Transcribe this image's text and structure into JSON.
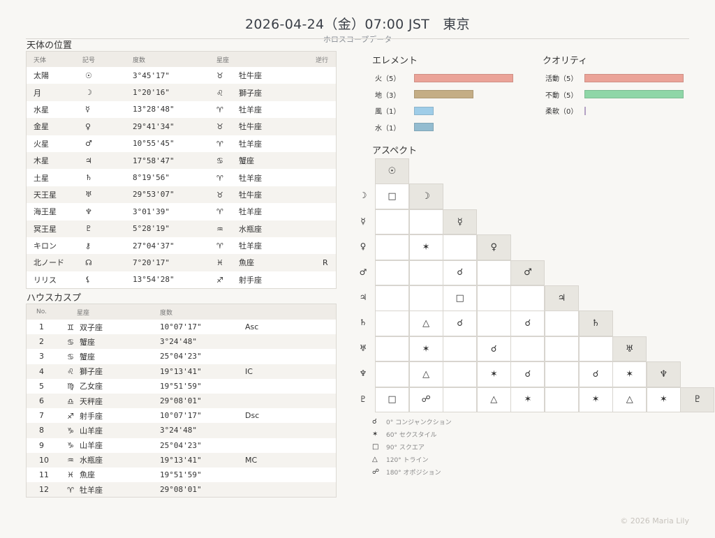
{
  "header": {
    "title": "2026-04-24（金）07:00 JST　東京",
    "subtitle": "ホロスコープデータ"
  },
  "planets": {
    "title": "天体の位置",
    "columns": [
      "天体",
      "記号",
      "度数",
      "星座",
      "逆行"
    ],
    "rows": [
      {
        "name": "太陽",
        "symbol": "☉",
        "degree": "3°45'17\"",
        "sign_symbol": "♉",
        "sign": "牡牛座",
        "retro": ""
      },
      {
        "name": "月",
        "symbol": "☽",
        "degree": "1°20'16\"",
        "sign_symbol": "♌",
        "sign": "獅子座",
        "retro": ""
      },
      {
        "name": "水星",
        "symbol": "☿",
        "degree": "13°28'48\"",
        "sign_symbol": "♈",
        "sign": "牡羊座",
        "retro": ""
      },
      {
        "name": "金星",
        "symbol": "♀",
        "degree": "29°41'34\"",
        "sign_symbol": "♉",
        "sign": "牡牛座",
        "retro": ""
      },
      {
        "name": "火星",
        "symbol": "♂",
        "degree": "10°55'45\"",
        "sign_symbol": "♈",
        "sign": "牡羊座",
        "retro": ""
      },
      {
        "name": "木星",
        "symbol": "♃",
        "degree": "17°58'47\"",
        "sign_symbol": "♋",
        "sign": "蟹座",
        "retro": ""
      },
      {
        "name": "土星",
        "symbol": "♄",
        "degree": "8°19'56\"",
        "sign_symbol": "♈",
        "sign": "牡羊座",
        "retro": ""
      },
      {
        "name": "天王星",
        "symbol": "♅",
        "degree": "29°53'07\"",
        "sign_symbol": "♉",
        "sign": "牡牛座",
        "retro": ""
      },
      {
        "name": "海王星",
        "symbol": "♆",
        "degree": "3°01'39\"",
        "sign_symbol": "♈",
        "sign": "牡羊座",
        "retro": ""
      },
      {
        "name": "冥王星",
        "symbol": "♇",
        "degree": "5°28'19\"",
        "sign_symbol": "♒",
        "sign": "水瓶座",
        "retro": ""
      },
      {
        "name": "キロン",
        "symbol": "⚷",
        "degree": "27°04'37\"",
        "sign_symbol": "♈",
        "sign": "牡羊座",
        "retro": ""
      },
      {
        "name": "北ノード",
        "symbol": "☊",
        "degree": "7°20'17\"",
        "sign_symbol": "♓",
        "sign": "魚座",
        "retro": "R"
      },
      {
        "name": "リリス",
        "symbol": "⚸",
        "degree": "13°54'28\"",
        "sign_symbol": "♐",
        "sign": "射手座",
        "retro": ""
      }
    ]
  },
  "houses": {
    "title": "ハウスカスプ",
    "columns": [
      "No.",
      "星座",
      "度数",
      ""
    ],
    "rows": [
      {
        "no": "1",
        "sign_symbol": "♊",
        "sign": "双子座",
        "degree": "10°07'17\"",
        "angle": "Asc"
      },
      {
        "no": "2",
        "sign_symbol": "♋",
        "sign": "蟹座",
        "degree": "3°24'48\"",
        "angle": ""
      },
      {
        "no": "3",
        "sign_symbol": "♋",
        "sign": "蟹座",
        "degree": "25°04'23\"",
        "angle": ""
      },
      {
        "no": "4",
        "sign_symbol": "♌",
        "sign": "獅子座",
        "degree": "19°13'41\"",
        "angle": "IC"
      },
      {
        "no": "5",
        "sign_symbol": "♍",
        "sign": "乙女座",
        "degree": "19°51'59\"",
        "angle": ""
      },
      {
        "no": "6",
        "sign_symbol": "♎",
        "sign": "天秤座",
        "degree": "29°08'01\"",
        "angle": ""
      },
      {
        "no": "7",
        "sign_symbol": "♐",
        "sign": "射手座",
        "degree": "10°07'17\"",
        "angle": "Dsc"
      },
      {
        "no": "8",
        "sign_symbol": "♑",
        "sign": "山羊座",
        "degree": "3°24'48\"",
        "angle": ""
      },
      {
        "no": "9",
        "sign_symbol": "♑",
        "sign": "山羊座",
        "degree": "25°04'23\"",
        "angle": ""
      },
      {
        "no": "10",
        "sign_symbol": "♒",
        "sign": "水瓶座",
        "degree": "19°13'41\"",
        "angle": "MC"
      },
      {
        "no": "11",
        "sign_symbol": "♓",
        "sign": "魚座",
        "degree": "19°51'59\"",
        "angle": ""
      },
      {
        "no": "12",
        "sign_symbol": "♈",
        "sign": "牡羊座",
        "degree": "29°08'01\"",
        "angle": ""
      }
    ]
  },
  "elements": {
    "title": "エレメント",
    "max": 5,
    "items": [
      {
        "label": "火（5）",
        "value": 5,
        "color": "#eba398"
      },
      {
        "label": "地（3）",
        "value": 3,
        "color": "#c4ad85"
      },
      {
        "label": "風（1）",
        "value": 1,
        "color": "#9fcde8"
      },
      {
        "label": "水（1）",
        "value": 1,
        "color": "#93bcd0"
      }
    ]
  },
  "qualities": {
    "title": "クオリティ",
    "max": 5,
    "items": [
      {
        "label": "活動（5）",
        "value": 5,
        "color": "#eba398"
      },
      {
        "label": "不動（5）",
        "value": 5,
        "color": "#8fd6a7"
      },
      {
        "label": "柔軟（0）",
        "value": 0,
        "color": "#cdb8e0"
      }
    ]
  },
  "aspects": {
    "title": "アスペクト",
    "planets": [
      "☉",
      "☽",
      "☿",
      "♀",
      "♂",
      "♃",
      "♄",
      "♅",
      "♆",
      "♇"
    ],
    "grid": [
      [],
      [
        "□"
      ],
      [
        "",
        ""
      ],
      [
        "",
        "✶",
        ""
      ],
      [
        "",
        "",
        "☌",
        ""
      ],
      [
        "",
        "",
        "□",
        "",
        ""
      ],
      [
        "",
        "△",
        "☌",
        "",
        "☌",
        ""
      ],
      [
        "",
        "✶",
        "",
        "☌",
        "",
        "",
        ""
      ],
      [
        "",
        "△",
        "",
        "✶",
        "☌",
        "",
        "☌",
        "✶"
      ],
      [
        "□",
        "☍",
        "",
        "△",
        "✶",
        "",
        "✶",
        "△",
        "✶"
      ]
    ],
    "legend": [
      {
        "symbol": "☌",
        "label": "0° コンジャンクション"
      },
      {
        "symbol": "✶",
        "label": "60° セクスタイル"
      },
      {
        "symbol": "□",
        "label": "90° スクエア"
      },
      {
        "symbol": "△",
        "label": "120° トライン"
      },
      {
        "symbol": "☍",
        "label": "180° オポジション"
      }
    ]
  },
  "footer": "© 2026 Maria Lily"
}
